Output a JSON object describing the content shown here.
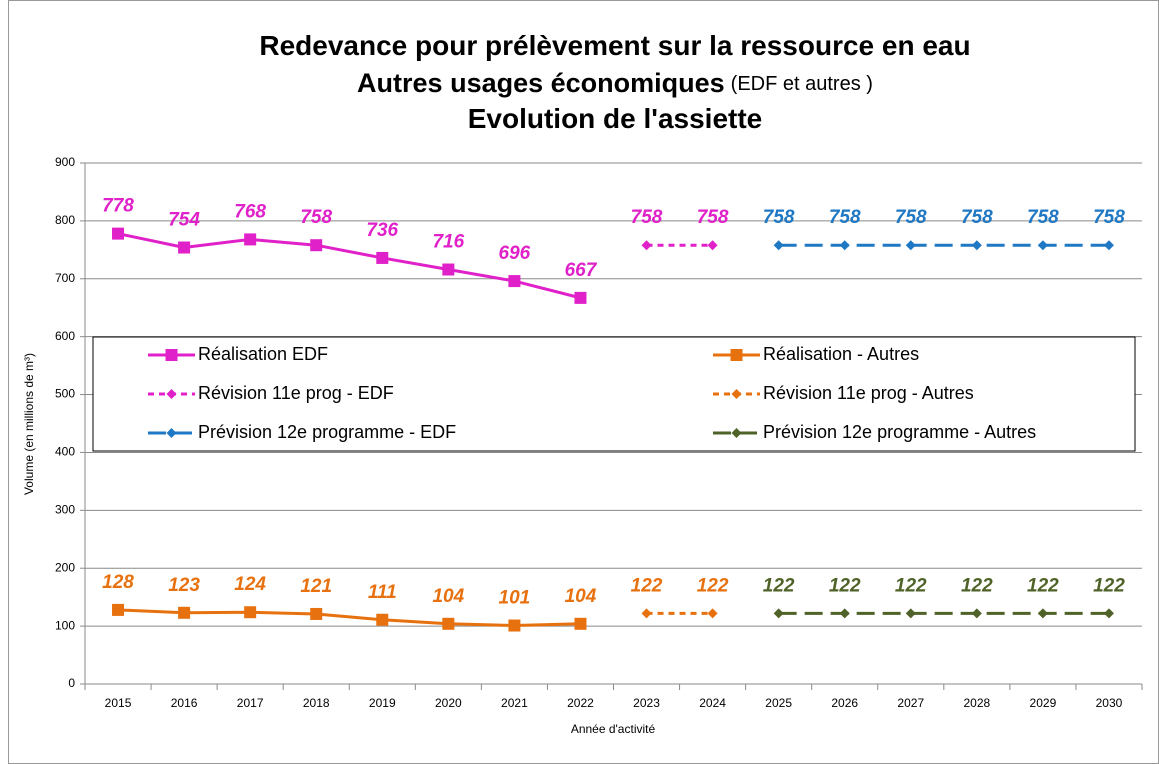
{
  "chart_data": {
    "type": "line",
    "title_lines": [
      [
        "Redevance pour prélèvement sur la ressource en eau"
      ],
      [
        "Autres usages économiques",
        "(EDF et autres )"
      ],
      [
        "Evolution de l'assiette"
      ]
    ],
    "y_label": "Volume (en millions de m³)",
    "x_label": "Année d'activité",
    "categories": [
      "2015",
      "2016",
      "2017",
      "2018",
      "2019",
      "2020",
      "2021",
      "2022",
      "2023",
      "2024",
      "2025",
      "2026",
      "2027",
      "2028",
      "2029",
      "2030"
    ],
    "ylim": [
      0,
      900
    ],
    "yticks": [
      0,
      100,
      200,
      300,
      400,
      500,
      600,
      700,
      800,
      900
    ],
    "grid": true,
    "legend": "center",
    "series": [
      {
        "name": "Réalisation EDF",
        "color": "#e020c8",
        "dash": "solid",
        "marker": "square",
        "values": [
          778,
          754,
          768,
          758,
          736,
          716,
          696,
          667,
          null,
          null,
          null,
          null,
          null,
          null,
          null,
          null
        ]
      },
      {
        "name": "Réalisation - Autres",
        "color": "#e8710f",
        "dash": "solid",
        "marker": "square",
        "values": [
          128,
          123,
          124,
          121,
          111,
          104,
          101,
          104,
          null,
          null,
          null,
          null,
          null,
          null,
          null,
          null
        ]
      },
      {
        "name": "Révision 11e prog - EDF",
        "color": "#e020c8",
        "dash": "short",
        "marker": "diamond",
        "values": [
          null,
          null,
          null,
          null,
          null,
          null,
          null,
          null,
          758,
          758,
          null,
          null,
          null,
          null,
          null,
          null
        ]
      },
      {
        "name": "Révision 11e prog - Autres",
        "color": "#e8710f",
        "dash": "short",
        "marker": "diamond",
        "values": [
          null,
          null,
          null,
          null,
          null,
          null,
          null,
          null,
          122,
          122,
          null,
          null,
          null,
          null,
          null,
          null
        ]
      },
      {
        "name": "Prévision 12e programme - EDF",
        "color": "#1f78c4",
        "dash": "long",
        "marker": "diamond",
        "values": [
          null,
          null,
          null,
          null,
          null,
          null,
          null,
          null,
          null,
          null,
          758,
          758,
          758,
          758,
          758,
          758
        ]
      },
      {
        "name": "Prévision 12e programme - Autres",
        "color": "#4f6228",
        "dash": "long",
        "marker": "diamond",
        "values": [
          null,
          null,
          null,
          null,
          null,
          null,
          null,
          null,
          null,
          null,
          122,
          122,
          122,
          122,
          122,
          122
        ]
      }
    ]
  }
}
